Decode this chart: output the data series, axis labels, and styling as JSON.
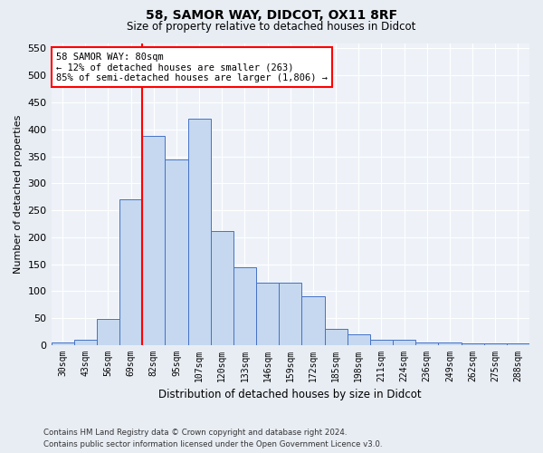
{
  "title1": "58, SAMOR WAY, DIDCOT, OX11 8RF",
  "title2": "Size of property relative to detached houses in Didcot",
  "xlabel": "Distribution of detached houses by size in Didcot",
  "ylabel": "Number of detached properties",
  "categories": [
    "30sqm",
    "43sqm",
    "56sqm",
    "69sqm",
    "82sqm",
    "95sqm",
    "107sqm",
    "120sqm",
    "133sqm",
    "146sqm",
    "159sqm",
    "172sqm",
    "185sqm",
    "198sqm",
    "211sqm",
    "224sqm",
    "236sqm",
    "249sqm",
    "262sqm",
    "275sqm",
    "288sqm"
  ],
  "values": [
    5,
    11,
    49,
    270,
    388,
    345,
    420,
    212,
    144,
    116,
    116,
    91,
    30,
    20,
    10,
    10,
    5,
    5,
    3,
    3,
    3
  ],
  "bar_color": "#c5d8f0",
  "bar_edge_color": "#4472c4",
  "vline_color": "red",
  "vline_x": 4.0,
  "annotation_title": "58 SAMOR WAY: 80sqm",
  "annotation_line1": "← 12% of detached houses are smaller (263)",
  "annotation_line2": "85% of semi-detached houses are larger (1,806) →",
  "annotation_box_color": "white",
  "annotation_box_edge": "red",
  "ylim": [
    0,
    560
  ],
  "yticks": [
    0,
    50,
    100,
    150,
    200,
    250,
    300,
    350,
    400,
    450,
    500,
    550
  ],
  "footnote1": "Contains HM Land Registry data © Crown copyright and database right 2024.",
  "footnote2": "Contains public sector information licensed under the Open Government Licence v3.0.",
  "bg_color": "#e8edf4",
  "plot_bg_color": "#eef2f8"
}
